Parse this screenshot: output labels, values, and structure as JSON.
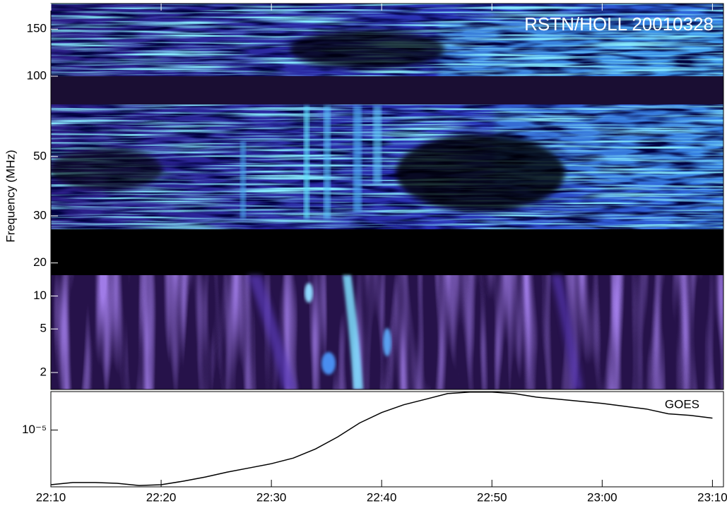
{
  "chart_data": [
    {
      "type": "spectrogram",
      "annotation": "RSTN/HOLL 20010328",
      "ylabel": "Frequency (MHz)",
      "log_y": true,
      "ylim": [
        18,
        187
      ],
      "yticks": [
        150,
        100,
        50,
        30,
        20
      ]
    },
    {
      "type": "spectrogram",
      "log_y": true,
      "ylim": [
        1.4,
        15.5
      ],
      "yticks": [
        10,
        5,
        2
      ]
    },
    {
      "type": "line",
      "log_y": true,
      "ylim": [
        1.2e-06,
        4.2e-05
      ],
      "yticks": [
        {
          "value": 1e-05,
          "label": "10⁻⁵"
        }
      ],
      "xlim": [
        "22:10",
        "23:11"
      ],
      "xticks": [
        "22:10",
        "22:20",
        "22:30",
        "22:40",
        "22:50",
        "23:00",
        "23:10"
      ],
      "x": [
        "22:10",
        "22:12",
        "22:14",
        "22:16",
        "22:18",
        "22:20",
        "22:22",
        "22:24",
        "22:26",
        "22:28",
        "22:30",
        "22:32",
        "22:34",
        "22:36",
        "22:38",
        "22:40",
        "22:42",
        "22:44",
        "22:46",
        "22:48",
        "22:50",
        "22:52",
        "22:54",
        "22:56",
        "22:58",
        "23:00",
        "23:02",
        "23:04",
        "23:06",
        "23:08",
        "23:10"
      ],
      "series": [
        {
          "name": "GOES",
          "color": "#000000",
          "values": [
            1.3e-06,
            1.41e-06,
            1.41e-06,
            1.37e-06,
            1.26e-06,
            1.3e-06,
            1.48e-06,
            1.73e-06,
            2.08e-06,
            2.43e-06,
            2.85e-06,
            3.51e-06,
            4.94e-06,
            7.7e-06,
            1.3e-05,
            1.92e-05,
            2.57e-05,
            3.16e-05,
            3.9e-05,
            4.11e-05,
            4.11e-05,
            3.9e-05,
            3.42e-05,
            3.16e-05,
            2.92e-05,
            2.7e-05,
            2.43e-05,
            2.19e-05,
            1.83e-05,
            1.73e-05,
            1.56e-05
          ]
        }
      ]
    }
  ]
}
